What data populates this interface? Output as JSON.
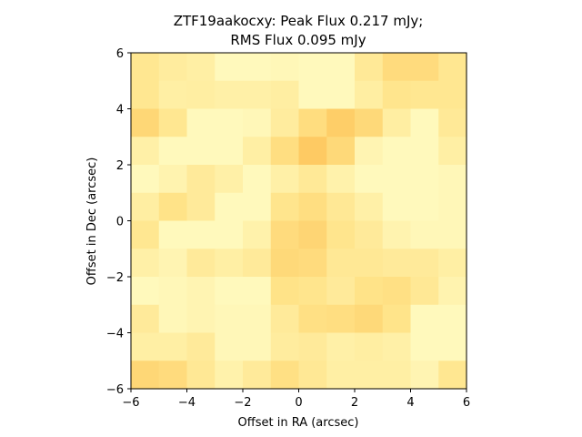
{
  "chart_data": {
    "type": "heatmap",
    "title_line1": "ZTF19aakocxy: Peak Flux 0.217 mJy;",
    "title_line2": "RMS Flux 0.095 mJy",
    "xlabel": "Offset in RA (arcsec)",
    "ylabel": "Offset in Dec (arcsec)",
    "xlim": [
      -6,
      6
    ],
    "ylim": [
      -6,
      6
    ],
    "x_ticks": [
      -6,
      -4,
      -2,
      0,
      2,
      4,
      6
    ],
    "y_ticks": [
      -6,
      -4,
      -2,
      0,
      2,
      4,
      6
    ],
    "x_tick_labels": [
      "−6",
      "−4",
      "−2",
      "0",
      "2",
      "4",
      "6"
    ],
    "y_tick_labels": [
      "−6",
      "−4",
      "−2",
      "0",
      "2",
      "4",
      "6"
    ],
    "colormap": {
      "low": "#ffffcc",
      "mid": "#ffe48a",
      "high": "#fdbf52"
    },
    "grid_size": [
      12,
      12
    ],
    "values_rows_top_to_bottom": [
      [
        0.45,
        0.35,
        0.3,
        0.12,
        0.12,
        0.15,
        0.12,
        0.12,
        0.4,
        0.62,
        0.62,
        0.45
      ],
      [
        0.45,
        0.3,
        0.32,
        0.28,
        0.28,
        0.32,
        0.12,
        0.12,
        0.32,
        0.48,
        0.45,
        0.45
      ],
      [
        0.68,
        0.45,
        0.12,
        0.12,
        0.15,
        0.35,
        0.6,
        0.8,
        0.65,
        0.32,
        0.12,
        0.4
      ],
      [
        0.28,
        0.12,
        0.12,
        0.12,
        0.3,
        0.58,
        0.85,
        0.65,
        0.2,
        0.12,
        0.12,
        0.3
      ],
      [
        0.12,
        0.22,
        0.38,
        0.28,
        0.12,
        0.28,
        0.4,
        0.25,
        0.12,
        0.12,
        0.12,
        0.15
      ],
      [
        0.32,
        0.52,
        0.38,
        0.12,
        0.12,
        0.48,
        0.58,
        0.42,
        0.28,
        0.12,
        0.12,
        0.15
      ],
      [
        0.45,
        0.12,
        0.12,
        0.12,
        0.25,
        0.62,
        0.7,
        0.48,
        0.38,
        0.22,
        0.15,
        0.15
      ],
      [
        0.28,
        0.2,
        0.38,
        0.3,
        0.38,
        0.65,
        0.62,
        0.42,
        0.42,
        0.38,
        0.38,
        0.3
      ],
      [
        0.12,
        0.15,
        0.2,
        0.12,
        0.12,
        0.52,
        0.48,
        0.38,
        0.52,
        0.55,
        0.42,
        0.22
      ],
      [
        0.38,
        0.15,
        0.2,
        0.15,
        0.15,
        0.38,
        0.55,
        0.58,
        0.65,
        0.5,
        0.12,
        0.12
      ],
      [
        0.3,
        0.3,
        0.38,
        0.15,
        0.15,
        0.35,
        0.38,
        0.28,
        0.32,
        0.28,
        0.12,
        0.12
      ],
      [
        0.68,
        0.62,
        0.42,
        0.25,
        0.38,
        0.55,
        0.42,
        0.3,
        0.3,
        0.3,
        0.2,
        0.45
      ]
    ]
  }
}
